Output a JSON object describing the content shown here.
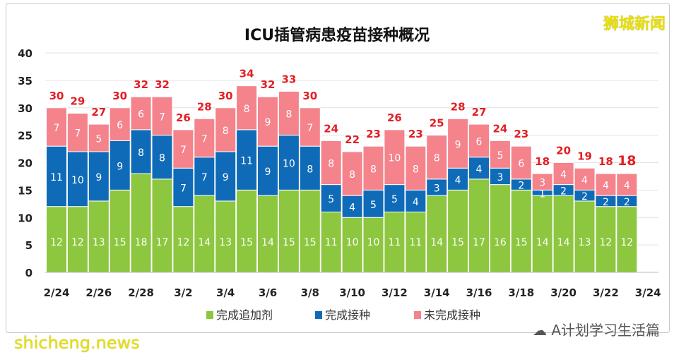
{
  "chart_data": {
    "type": "bar",
    "stacked": true,
    "title": "ICU插管病患疫苗接种概况",
    "categories": [
      "2/24",
      "2/25",
      "2/26",
      "2/27",
      "2/28",
      "3/1",
      "3/2",
      "3/3",
      "3/4",
      "3/5",
      "3/6",
      "3/7",
      "3/8",
      "3/9",
      "3/10",
      "3/11",
      "3/12",
      "3/13",
      "3/14",
      "3/15",
      "3/16",
      "3/17",
      "3/18",
      "3/19",
      "3/20",
      "3/21",
      "3/22",
      "3/23"
    ],
    "x_tick_labels": [
      "2/24",
      "2/26",
      "2/28",
      "3/2",
      "3/4",
      "3/6",
      "3/8",
      "3/10",
      "3/12",
      "3/14",
      "3/16",
      "3/18",
      "3/20",
      "3/22",
      "3/24"
    ],
    "series": [
      {
        "name": "完成追加剂",
        "color": "#8dc63f",
        "values": [
          12,
          12,
          13,
          15,
          18,
          17,
          12,
          14,
          13,
          15,
          14,
          15,
          15,
          11,
          10,
          10,
          11,
          11,
          14,
          15,
          17,
          16,
          15,
          14,
          14,
          13,
          12,
          12
        ]
      },
      {
        "name": "完成接种",
        "color": "#0f6bb8",
        "values": [
          11,
          10,
          9,
          9,
          8,
          8,
          7,
          7,
          9,
          11,
          9,
          10,
          8,
          5,
          4,
          5,
          5,
          4,
          3,
          4,
          4,
          3,
          2,
          1,
          2,
          2,
          2,
          2
        ]
      },
      {
        "name": "未完成接种",
        "color": "#f4838c",
        "values": [
          7,
          7,
          5,
          6,
          6,
          7,
          7,
          7,
          8,
          8,
          9,
          8,
          7,
          8,
          8,
          8,
          10,
          8,
          8,
          9,
          6,
          5,
          6,
          3,
          4,
          4,
          4,
          4
        ]
      }
    ],
    "totals": [
      30,
      29,
      27,
      30,
      32,
      32,
      26,
      28,
      30,
      34,
      32,
      33,
      30,
      24,
      22,
      23,
      26,
      23,
      25,
      28,
      27,
      24,
      23,
      18,
      20,
      19,
      18,
      18
    ],
    "ylim": [
      0,
      40
    ],
    "y_ticks": [
      0,
      5,
      10,
      15,
      20,
      25,
      30,
      35,
      40
    ],
    "grid": true,
    "legend": "bottom",
    "total_label_color": "#e31e24"
  },
  "watermarks": {
    "top_right": "狮城新闻",
    "bottom_left": "shicheng.news",
    "wechat": "A计划学习生活篇"
  }
}
